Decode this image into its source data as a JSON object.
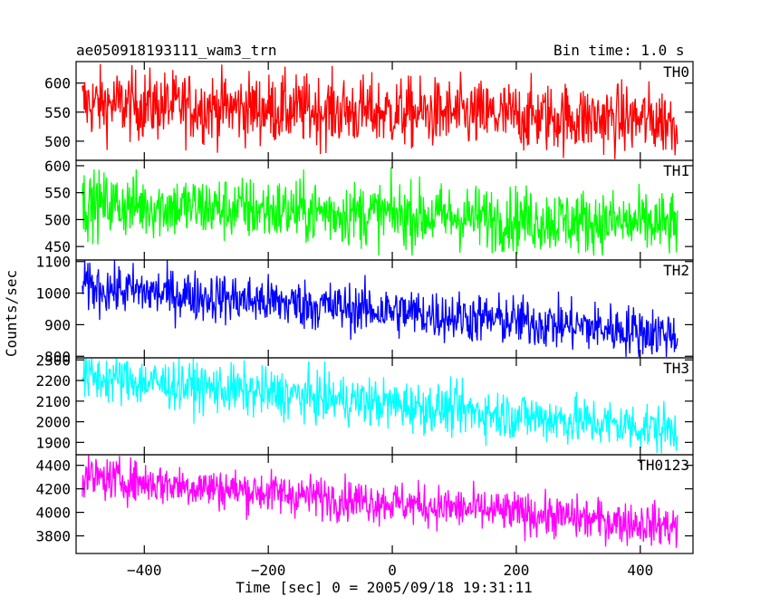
{
  "header": {
    "title": "ae050918193111_wam3_trn",
    "bin_time": "Bin time: 1.0 s"
  },
  "chart_data": {
    "type": "line",
    "xlabel": "Time [sec] 0 = 2005/09/18 19:31:11",
    "ylabel": "Counts/sec",
    "xlim": [
      -510,
      485
    ],
    "x_ticks": [
      -400,
      -200,
      0,
      200,
      400
    ],
    "x_range_data": [
      -500,
      460
    ],
    "panels": [
      {
        "name": "TH0",
        "color": "#ff0000",
        "ylim": [
          467,
          637
        ],
        "y_ticks": [
          500,
          550,
          600
        ],
        "trend_start": 565,
        "trend_end": 535,
        "noise_amplitude": 30,
        "spike_min": 469,
        "spike_max": 637
      },
      {
        "name": "TH1",
        "color": "#00ff00",
        "ylim": [
          425,
          610
        ],
        "y_ticks": [
          450,
          500,
          550,
          600
        ],
        "trend_start": 530,
        "trend_end": 490,
        "noise_amplitude": 30,
        "spike_min": 433,
        "spike_max": 608
      },
      {
        "name": "TH2",
        "color": "#0000ff",
        "ylim": [
          795,
          1105
        ],
        "y_ticks": [
          800,
          900,
          1000,
          1100
        ],
        "trend_start": 1020,
        "trend_end": 870,
        "noise_amplitude": 40,
        "spike_min": 798,
        "spike_max": 1105
      },
      {
        "name": "TH3",
        "color": "#00ffff",
        "ylim": [
          1840,
          2310
        ],
        "y_ticks": [
          1900,
          2000,
          2100,
          2200,
          2300
        ],
        "trend_start": 2220,
        "trend_end": 1960,
        "noise_amplitude": 60,
        "spike_min": 1845,
        "spike_max": 2310
      },
      {
        "name": "TH0123",
        "color": "#ff00ff",
        "ylim": [
          3650,
          4490
        ],
        "y_ticks": [
          3800,
          4000,
          4200,
          4400
        ],
        "trend_start": 4300,
        "trend_end": 3880,
        "noise_amplitude": 90,
        "spike_min": 3660,
        "spike_max": 4490
      }
    ]
  }
}
